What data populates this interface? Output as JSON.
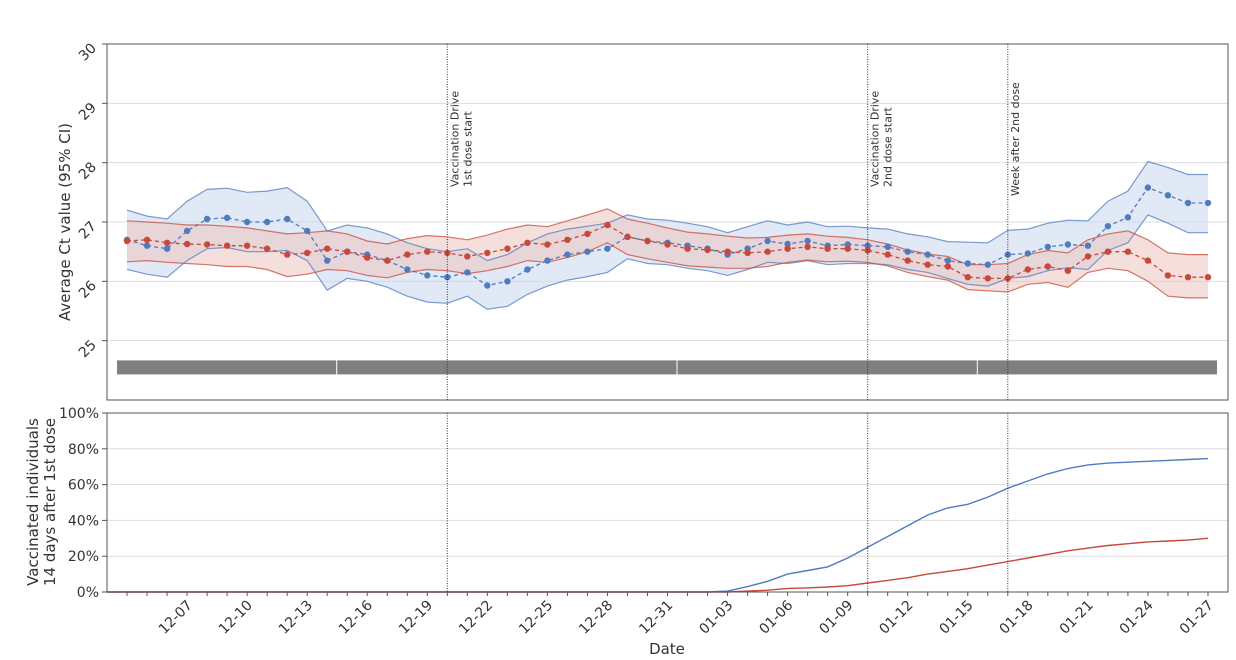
{
  "colors": {
    "blue": "#4f7bbf",
    "blue_band": "#c9d7ee",
    "red": "#c8493b",
    "red_band": "#ecc4c0",
    "gray_bar": "#7f7f7f",
    "grid": "#dddddd",
    "axis": "#555555"
  },
  "chart_data": [
    {
      "type": "line",
      "title": "",
      "xlabel": "",
      "ylabel": "Average Ct value (95% CI)",
      "ylim": [
        24,
        30
      ],
      "yticks": [
        25,
        26,
        27,
        28,
        29,
        30
      ],
      "grid": true,
      "x_tick_labels": [
        "12-07",
        "12-10",
        "12-13",
        "12-16",
        "12-19",
        "12-22",
        "12-25",
        "12-28",
        "12-31",
        "01-03",
        "01-06",
        "01-09",
        "01-12",
        "01-15",
        "01-18",
        "01-21",
        "01-24",
        "01-27"
      ],
      "x_range": [
        "2020-12-03",
        "2021-01-28"
      ],
      "dates": [
        "2020-12-04",
        "2020-12-05",
        "2020-12-06",
        "2020-12-07",
        "2020-12-08",
        "2020-12-09",
        "2020-12-10",
        "2020-12-11",
        "2020-12-12",
        "2020-12-13",
        "2020-12-14",
        "2020-12-15",
        "2020-12-16",
        "2020-12-17",
        "2020-12-18",
        "2020-12-19",
        "2020-12-20",
        "2020-12-21",
        "2020-12-22",
        "2020-12-23",
        "2020-12-24",
        "2020-12-25",
        "2020-12-26",
        "2020-12-27",
        "2020-12-28",
        "2020-12-29",
        "2020-12-30",
        "2020-12-31",
        "2021-01-01",
        "2021-01-02",
        "2021-01-03",
        "2021-01-04",
        "2021-01-05",
        "2021-01-06",
        "2021-01-07",
        "2021-01-08",
        "2021-01-09",
        "2021-01-10",
        "2021-01-11",
        "2021-01-12",
        "2021-01-13",
        "2021-01-14",
        "2021-01-15",
        "2021-01-16",
        "2021-01-17",
        "2021-01-18",
        "2021-01-19",
        "2021-01-20",
        "2021-01-21",
        "2021-01-22",
        "2021-01-23",
        "2021-01-24",
        "2021-01-25",
        "2021-01-26",
        "2021-01-27"
      ],
      "series": [
        {
          "color": "blue",
          "values": [
            26.7,
            26.6,
            26.55,
            26.85,
            27.05,
            27.07,
            27.0,
            27.0,
            27.05,
            26.85,
            26.35,
            26.5,
            26.45,
            26.35,
            26.2,
            26.1,
            26.07,
            26.15,
            25.93,
            26.0,
            26.2,
            26.35,
            26.45,
            26.5,
            26.55,
            26.75,
            26.68,
            26.65,
            26.6,
            26.55,
            26.45,
            26.55,
            26.68,
            26.63,
            26.68,
            26.6,
            26.62,
            26.6,
            26.58,
            26.5,
            26.45,
            26.35,
            26.3,
            26.28,
            26.45,
            26.47,
            26.58,
            26.62,
            26.6,
            26.93,
            27.08,
            27.58,
            27.45,
            27.32,
            27.32
          ],
          "ci_upper": [
            27.2,
            27.1,
            27.05,
            27.35,
            27.55,
            27.57,
            27.5,
            27.52,
            27.58,
            27.35,
            26.85,
            26.95,
            26.9,
            26.8,
            26.65,
            26.55,
            26.5,
            26.55,
            26.35,
            26.45,
            26.65,
            26.8,
            26.88,
            26.93,
            26.98,
            27.12,
            27.05,
            27.03,
            26.98,
            26.92,
            26.82,
            26.92,
            27.02,
            26.95,
            27.0,
            26.92,
            26.93,
            26.9,
            26.88,
            26.8,
            26.75,
            26.67,
            26.66,
            26.65,
            26.86,
            26.88,
            26.98,
            27.03,
            27.02,
            27.35,
            27.52,
            28.02,
            27.92,
            27.8,
            27.8
          ],
          "ci_lower": [
            26.2,
            26.12,
            26.07,
            26.35,
            26.55,
            26.57,
            26.5,
            26.5,
            26.52,
            26.35,
            25.85,
            26.05,
            26.0,
            25.9,
            25.75,
            25.65,
            25.63,
            25.75,
            25.53,
            25.58,
            25.78,
            25.92,
            26.02,
            26.08,
            26.15,
            26.38,
            26.3,
            26.28,
            26.22,
            26.18,
            26.1,
            26.2,
            26.32,
            26.3,
            26.35,
            26.28,
            26.3,
            26.3,
            26.28,
            26.2,
            26.15,
            26.05,
            25.95,
            25.92,
            26.05,
            26.08,
            26.18,
            26.23,
            26.2,
            26.52,
            26.65,
            27.12,
            26.98,
            26.82,
            26.82
          ]
        },
        {
          "color": "red",
          "values": [
            26.68,
            26.7,
            26.65,
            26.63,
            26.62,
            26.6,
            26.6,
            26.55,
            26.45,
            26.48,
            26.55,
            26.5,
            26.4,
            26.35,
            26.45,
            26.5,
            26.48,
            26.42,
            26.48,
            26.55,
            26.65,
            26.62,
            26.7,
            26.8,
            26.95,
            26.75,
            26.68,
            26.62,
            26.55,
            26.53,
            26.5,
            26.48,
            26.5,
            26.55,
            26.58,
            26.55,
            26.55,
            26.52,
            26.45,
            26.35,
            26.28,
            26.25,
            26.07,
            26.05,
            26.05,
            26.2,
            26.25,
            26.18,
            26.42,
            26.5,
            26.5,
            26.35,
            26.1,
            26.07,
            26.07
          ],
          "ci_upper": [
            27.02,
            27.0,
            26.98,
            26.95,
            26.95,
            26.93,
            26.9,
            26.85,
            26.8,
            26.82,
            26.85,
            26.8,
            26.68,
            26.63,
            26.72,
            26.77,
            26.75,
            26.7,
            26.78,
            26.88,
            26.95,
            26.92,
            27.02,
            27.12,
            27.22,
            27.05,
            26.98,
            26.9,
            26.83,
            26.8,
            26.76,
            26.73,
            26.74,
            26.78,
            26.8,
            26.76,
            26.74,
            26.7,
            26.63,
            26.53,
            26.46,
            26.42,
            26.28,
            26.28,
            26.3,
            26.45,
            26.52,
            26.48,
            26.7,
            26.8,
            26.85,
            26.7,
            26.48,
            26.45,
            26.45
          ],
          "ci_lower": [
            26.33,
            26.35,
            26.32,
            26.3,
            26.28,
            26.25,
            26.25,
            26.2,
            26.08,
            26.12,
            26.2,
            26.18,
            26.1,
            26.06,
            26.15,
            26.2,
            26.18,
            26.13,
            26.18,
            26.25,
            26.35,
            26.32,
            26.4,
            26.5,
            26.65,
            26.45,
            26.38,
            26.32,
            26.26,
            26.24,
            26.22,
            26.22,
            26.25,
            26.32,
            26.36,
            26.33,
            26.34,
            26.32,
            26.26,
            26.15,
            26.08,
            26.02,
            25.86,
            25.84,
            25.82,
            25.95,
            25.98,
            25.9,
            26.15,
            26.22,
            26.18,
            26.0,
            25.75,
            25.72,
            25.72
          ]
        }
      ],
      "gray_segments": [
        [
          "2020-12-04",
          "2020-12-14"
        ],
        [
          "2020-12-15",
          "2020-12-31"
        ],
        [
          "2021-01-01",
          "2021-01-15"
        ],
        [
          "2021-01-16",
          "2021-01-27"
        ]
      ],
      "gray_segment_level": 24.55,
      "vlines": [
        {
          "date": "2020-12-20",
          "label_line1": "Vaccination Drive",
          "label_line2": "1st dose start"
        },
        {
          "date": "2021-01-10",
          "label_line1": "Vaccination Drive",
          "label_line2": "2nd dose start"
        },
        {
          "date": "2021-01-17",
          "label_line1": "Week after 2nd dose",
          "label_line2": ""
        }
      ]
    },
    {
      "type": "line",
      "title": "",
      "xlabel": "Date",
      "ylabel_line1": "Vaccinated individuals",
      "ylabel_line2": "14 days after 1st dose",
      "ylim": [
        0,
        100
      ],
      "yticks": [
        "0%",
        "20%",
        "40%",
        "60%",
        "80%",
        "100%"
      ],
      "grid": true,
      "series": [
        {
          "color": "blue",
          "points": [
            [
              "2021-01-02",
              0
            ],
            [
              "2021-01-03",
              0.5
            ],
            [
              "2021-01-04",
              3
            ],
            [
              "2021-01-05",
              6
            ],
            [
              "2021-01-06",
              10
            ],
            [
              "2021-01-07",
              12
            ],
            [
              "2021-01-08",
              14
            ],
            [
              "2021-01-09",
              19
            ],
            [
              "2021-01-10",
              25
            ],
            [
              "2021-01-11",
              31
            ],
            [
              "2021-01-12",
              37
            ],
            [
              "2021-01-13",
              43
            ],
            [
              "2021-01-14",
              47
            ],
            [
              "2021-01-15",
              49
            ],
            [
              "2021-01-16",
              53
            ],
            [
              "2021-01-17",
              58
            ],
            [
              "2021-01-18",
              62
            ],
            [
              "2021-01-19",
              66
            ],
            [
              "2021-01-20",
              69
            ],
            [
              "2021-01-21",
              71
            ],
            [
              "2021-01-22",
              72
            ],
            [
              "2021-01-23",
              72.5
            ],
            [
              "2021-01-24",
              73
            ],
            [
              "2021-01-25",
              73.5
            ],
            [
              "2021-01-26",
              74
            ],
            [
              "2021-01-27",
              74.5
            ]
          ]
        },
        {
          "color": "red",
          "points": [
            [
              "2021-01-03",
              0
            ],
            [
              "2021-01-04",
              0.5
            ],
            [
              "2021-01-05",
              1
            ],
            [
              "2021-01-06",
              2
            ],
            [
              "2021-01-07",
              2.3
            ],
            [
              "2021-01-08",
              2.8
            ],
            [
              "2021-01-09",
              3.5
            ],
            [
              "2021-01-10",
              5
            ],
            [
              "2021-01-11",
              6.5
            ],
            [
              "2021-01-12",
              8
            ],
            [
              "2021-01-13",
              10
            ],
            [
              "2021-01-14",
              11.5
            ],
            [
              "2021-01-15",
              13
            ],
            [
              "2021-01-16",
              15
            ],
            [
              "2021-01-17",
              17
            ],
            [
              "2021-01-18",
              19
            ],
            [
              "2021-01-19",
              21
            ],
            [
              "2021-01-20",
              23
            ],
            [
              "2021-01-21",
              24.5
            ],
            [
              "2021-01-22",
              26
            ],
            [
              "2021-01-23",
              27
            ],
            [
              "2021-01-24",
              28
            ],
            [
              "2021-01-25",
              28.5
            ],
            [
              "2021-01-26",
              29
            ],
            [
              "2021-01-27",
              30
            ]
          ]
        }
      ]
    }
  ]
}
